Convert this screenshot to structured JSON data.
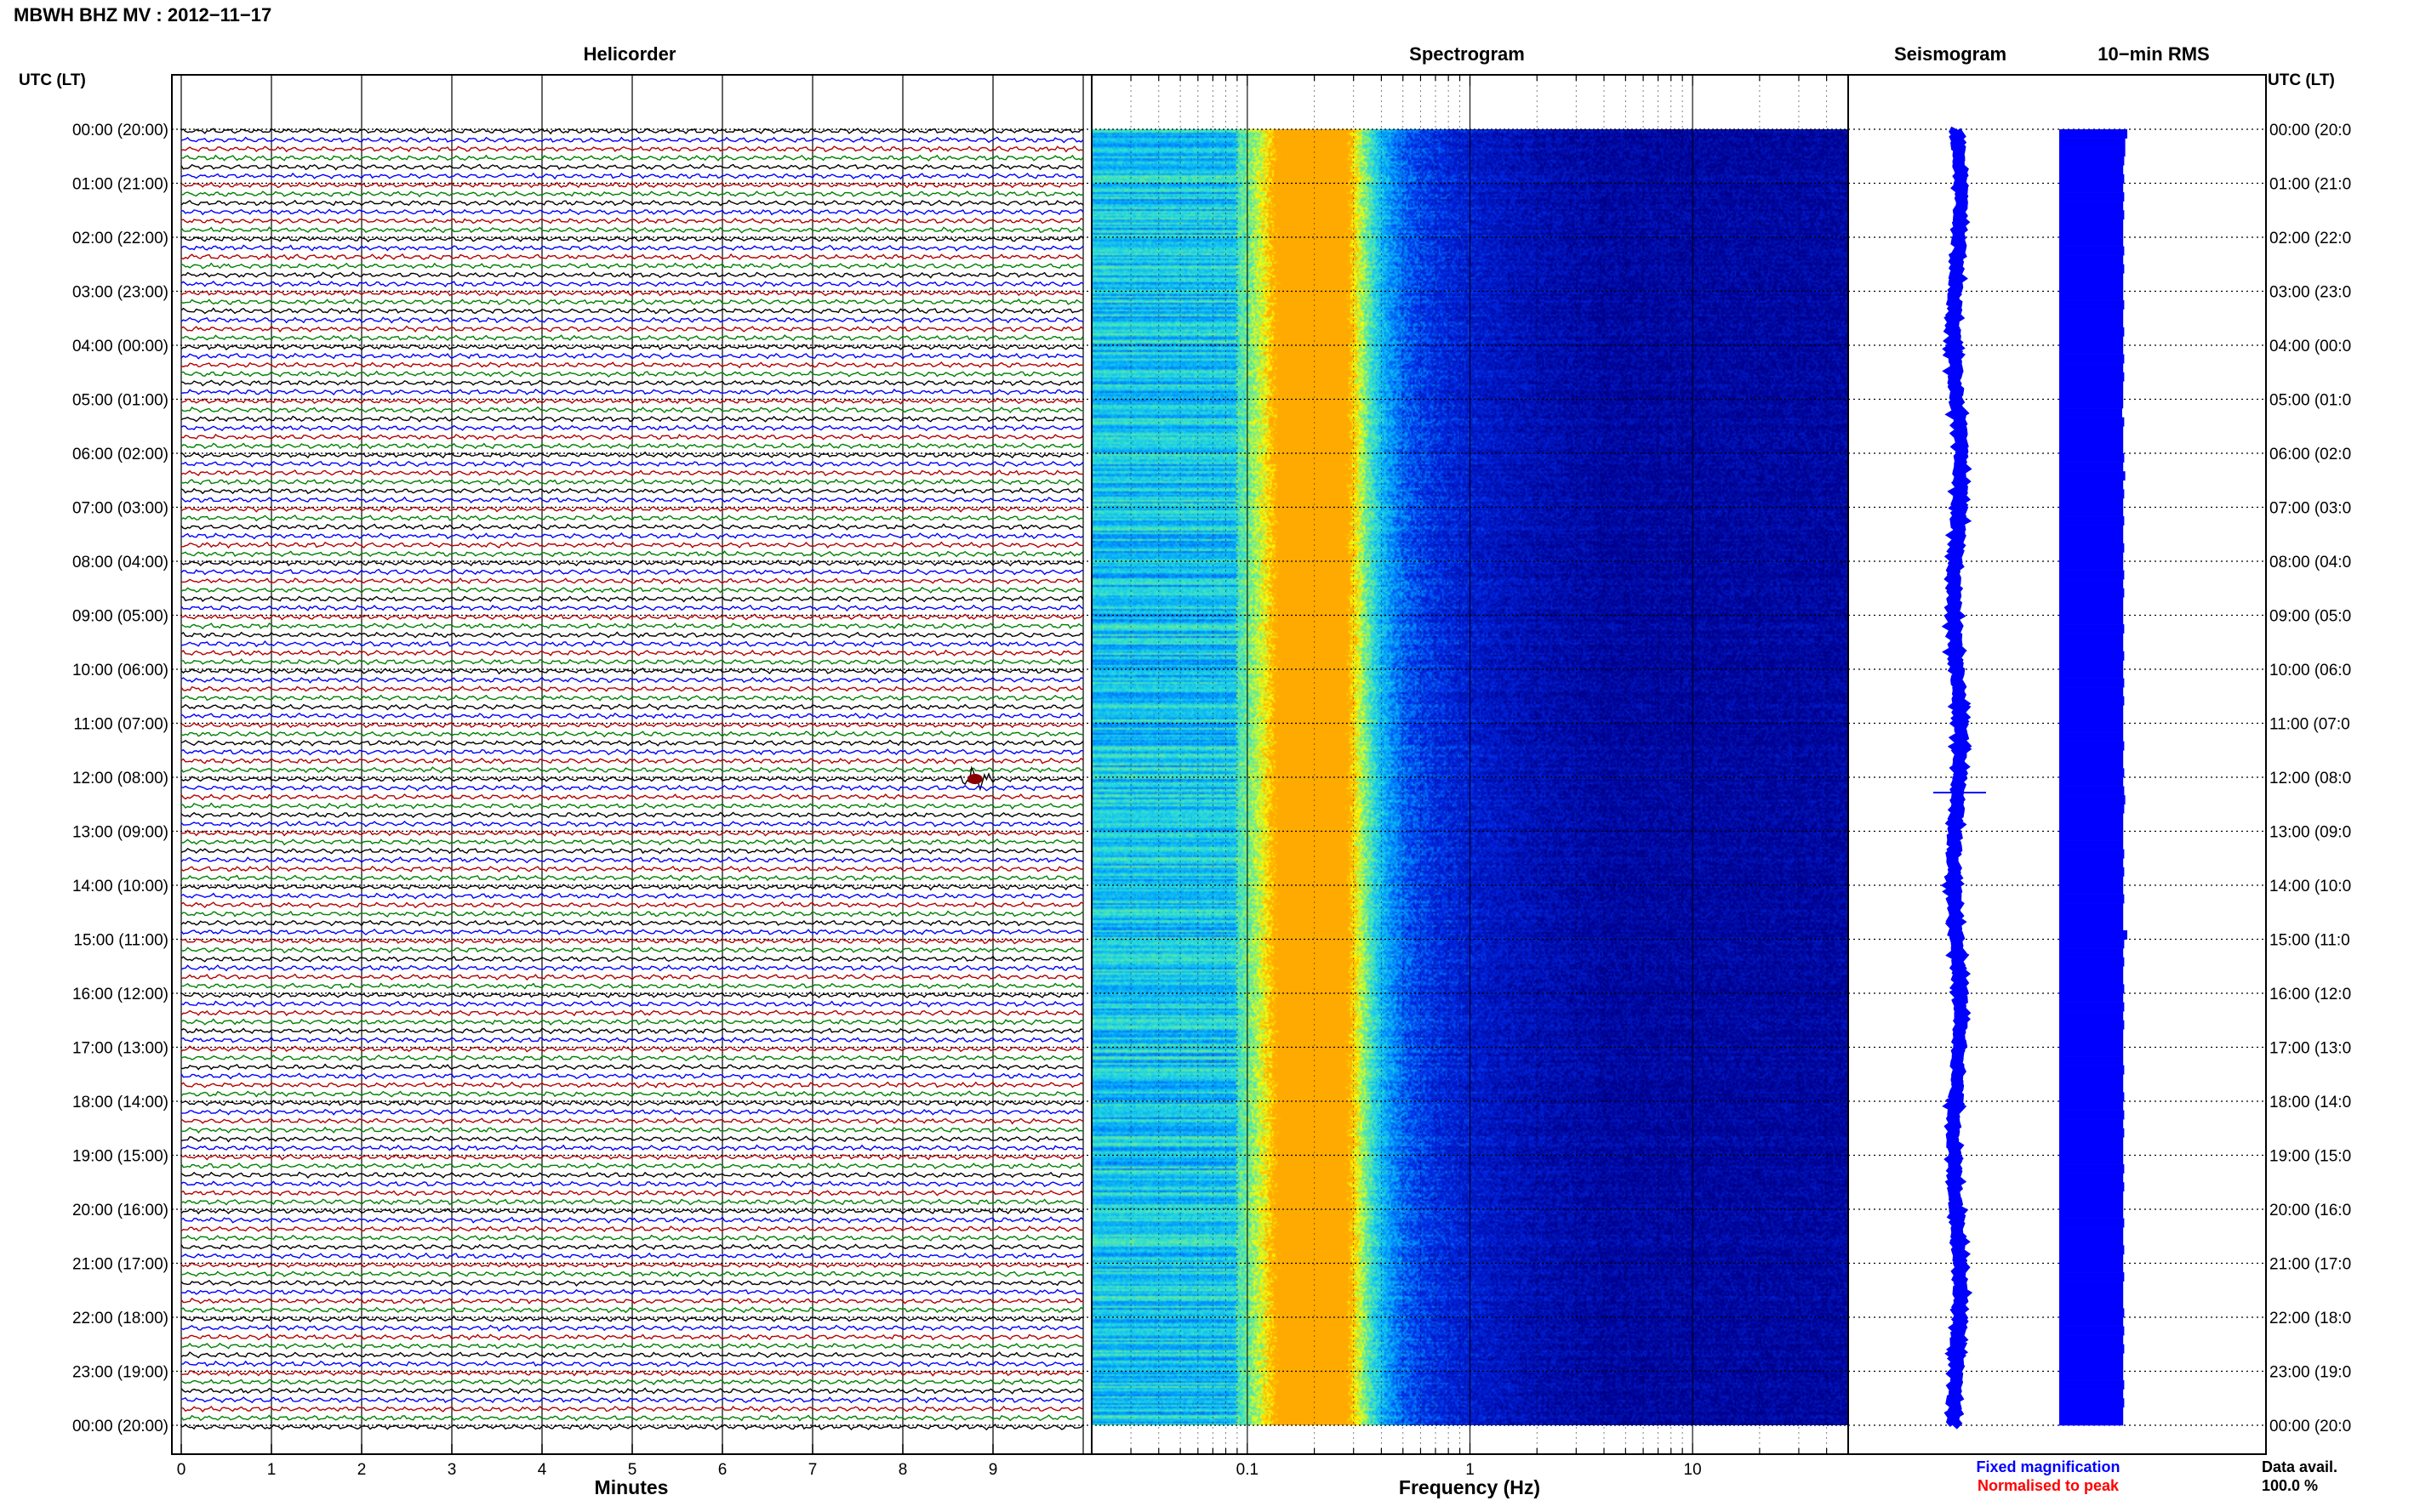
{
  "header": {
    "title": "MBWH BHZ MV : 2012−11−17"
  },
  "panels": {
    "helicorder_title": "Helicorder",
    "spectrogram_title": "Spectrogram",
    "seismogram_title": "Seismogram",
    "rms_title": "10−min RMS"
  },
  "axes": {
    "left_header": "UTC (LT)",
    "right_header": "UTC (LT)",
    "right_labels_clipped": true,
    "time_labels": [
      "00:00 (20:00)",
      "01:00 (21:00)",
      "02:00 (22:00)",
      "03:00 (23:00)",
      "04:00 (00:00)",
      "05:00 (01:00)",
      "06:00 (02:00)",
      "07:00 (03:00)",
      "08:00 (04:00)",
      "09:00 (05:00)",
      "10:00 (06:00)",
      "11:00 (07:00)",
      "12:00 (08:00)",
      "13:00 (09:00)",
      "14:00 (10:00)",
      "15:00 (11:00)",
      "16:00 (12:00)",
      "17:00 (13:00)",
      "18:00 (14:00)",
      "19:00 (15:00)",
      "20:00 (16:00)",
      "21:00 (17:00)",
      "22:00 (18:00)",
      "23:00 (19:00)",
      "00:00 (20:00)"
    ],
    "minutes_label": "Minutes",
    "minute_ticks": [
      "0",
      "1",
      "2",
      "3",
      "4",
      "5",
      "6",
      "7",
      "8",
      "9"
    ],
    "frequency_label": "Frequency (Hz)",
    "frequency_ticks": [
      "0.1",
      "1",
      "10"
    ]
  },
  "legend": {
    "fixed": "Fixed magnification",
    "normalised": "Normalised to peak",
    "data_avail_label": "Data avail.",
    "data_avail_value": "100.0 %"
  },
  "colors": {
    "trace_cycle": [
      "#000000",
      "#0000ff",
      "#b40000",
      "#008000"
    ],
    "spectrogram_dark": "#00008b",
    "spectrogram_mid": "#1e90ff",
    "spectrogram_hot": "#ffff00",
    "seismogram": "#0000ff",
    "rms": "#0000ff",
    "legend_fixed": "#0000ff",
    "legend_normalised": "#ff0000"
  },
  "chart_data": {
    "type": "helicorder",
    "date": "2012-11-17",
    "lines_per_hour": 6,
    "hours": 24,
    "minutes_range": [
      0,
      10
    ],
    "frequency_scale": "log",
    "frequency_range_hz": [
      0.02,
      50
    ],
    "spectrogram_peak_hz": 0.2,
    "event": {
      "time_utc": "12:08",
      "minute": 8.8
    },
    "rms_values": [
      1.0,
      0.9,
      0.9,
      0.85,
      0.8,
      0.85,
      0.8,
      0.85,
      0.8,
      0.85,
      0.8,
      0.8,
      0.8,
      0.85,
      0.8,
      0.85,
      0.8,
      0.8,
      0.8,
      0.85,
      0.8,
      0.8,
      0.85,
      0.8,
      0.8,
      0.85,
      0.8,
      0.85,
      0.8,
      0.8,
      0.8,
      0.75,
      0.85,
      0.8,
      0.8,
      0.8,
      0.85,
      0.8,
      0.9,
      0.8,
      0.85,
      0.8,
      0.8,
      0.85,
      0.8,
      0.8,
      0.85,
      0.8,
      0.8,
      0.85,
      0.8,
      0.85,
      0.8,
      0.8,
      0.8,
      0.85,
      0.8,
      0.8,
      0.85,
      0.8,
      0.8,
      0.85,
      0.8,
      0.85,
      0.8,
      0.8,
      0.8,
      0.8,
      0.85,
      0.8,
      0.8,
      0.85,
      0.8,
      0.85,
      0.9,
      0.85,
      0.8,
      0.8,
      0.8,
      0.8,
      0.85,
      0.8,
      0.85,
      0.8,
      0.8,
      0.85,
      0.8,
      0.8,
      0.8,
      1.0,
      0.85,
      0.8,
      0.85,
      0.8,
      0.8,
      0.85,
      0.8,
      0.85,
      0.8,
      0.85,
      0.8,
      0.8,
      0.8,
      0.8,
      0.85,
      0.8,
      0.8,
      0.85,
      0.8,
      0.85,
      0.8,
      0.85,
      0.8,
      0.8,
      0.8,
      0.85,
      0.8,
      0.85,
      0.8,
      0.8,
      0.8,
      0.85,
      0.8,
      0.8,
      0.85,
      0.8,
      0.8,
      0.85,
      0.8,
      0.8,
      0.8,
      0.85,
      0.8,
      0.85,
      0.8,
      0.85,
      0.8,
      0.8,
      0.8,
      0.85,
      0.8,
      0.85,
      0.8,
      0.8
    ]
  }
}
